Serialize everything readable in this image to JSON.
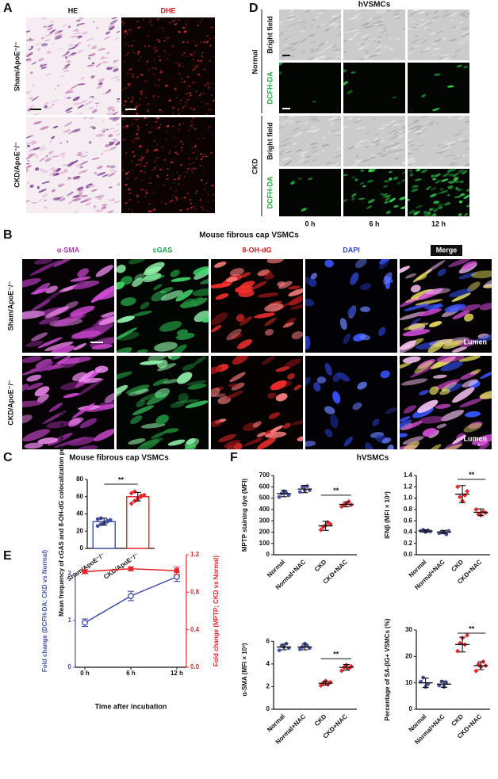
{
  "figure": {
    "panel_a": {
      "letter": "A",
      "columns": [
        "HE",
        "DHE"
      ],
      "rows": [
        "Sham/ApoE⁻/⁻",
        "CKD/ApoE⁻/⁻"
      ]
    },
    "panel_d": {
      "letter": "D",
      "title": "hVSMCs",
      "groups": [
        "Normal",
        "CKD"
      ],
      "channels": [
        "Bright field",
        "DCFH-DA",
        "Bright field",
        "DCFH-DA"
      ],
      "times": [
        "0 h",
        "6 h",
        "12 h"
      ]
    },
    "panel_b": {
      "letter": "B",
      "title": "Mouse fibrous cap VSMCs",
      "columns": [
        "α-SMA",
        "cGAS",
        "8-OH-dG",
        "DAPI",
        "Merge"
      ],
      "rows": [
        "Sham/ApoE⁻/⁻",
        "CKD/ApoE⁻/⁻"
      ],
      "annotations": [
        "Lumen",
        "Lumen"
      ]
    },
    "panel_f": {
      "letter": "F",
      "title": "hVSMCs"
    }
  },
  "chart_data": [
    {
      "type": "bar",
      "letter": "C",
      "title": "Mouse fibrous cap VSMCs",
      "y_label": "Mean frequency of cGAS and 8-OH-dG colocalization per mouse (%)",
      "categories": [
        "Sham/ApoE⁻/⁻",
        "CKD/ApoE⁻/⁻"
      ],
      "values": [
        31,
        60
      ],
      "errors": [
        4,
        5
      ],
      "points": [
        [
          26,
          28,
          30,
          31,
          33,
          34,
          35,
          29,
          32
        ],
        [
          52,
          55,
          58,
          60,
          62,
          64,
          66,
          57,
          61
        ]
      ],
      "colors": [
        "#3f4fa8",
        "#e8262a"
      ],
      "ylim": [
        0,
        80
      ],
      "yticks": [
        0,
        20,
        40,
        60,
        80
      ],
      "annotation": "**"
    },
    {
      "type": "line",
      "letter": "E",
      "x_label": "Time after incubation",
      "categories": [
        "0 h",
        "6 h",
        "12 h"
      ],
      "series": [
        {
          "name": "Fold change (DCFH-DA; CKD vs Normal)",
          "color": "#4a55a8",
          "values": [
            0.95,
            1.52,
            1.93
          ],
          "errors": [
            0.08,
            0.1,
            0.1
          ]
        },
        {
          "name": "Fold change (MPTP; CKD vs Normal)",
          "color": "#e8262a",
          "axis": "y2",
          "values": [
            1.02,
            1.05,
            1.03
          ],
          "errors": [
            0.02,
            0.02,
            0.04
          ]
        }
      ],
      "ylim": [
        0,
        2.4
      ],
      "yticks": [
        0,
        1,
        2
      ],
      "y2lim": [
        0,
        1.2
      ],
      "y2ticks": [
        {
          "value": 0,
          "label": "0.0"
        },
        0.4,
        0.8,
        1.2
      ]
    },
    {
      "type": "dot",
      "y_label": "MPTP staining dye (MFI)",
      "categories": [
        "Normal",
        "Normal+NAC",
        "CKD",
        "CKD+NAC"
      ],
      "values": [
        540,
        580,
        255,
        445
      ],
      "errors": [
        28,
        32,
        40,
        22
      ],
      "points": [
        [
          510,
          540,
          560,
          545,
          525
        ],
        [
          555,
          600,
          570,
          605,
          570
        ],
        [
          220,
          245,
          260,
          285,
          270
        ],
        [
          425,
          440,
          455,
          470,
          440
        ]
      ],
      "colors": [
        "#4a55a8",
        "#4a55a8",
        "#e8262a",
        "#e8262a"
      ],
      "ylim": [
        0,
        700
      ],
      "yticks": [
        0,
        100,
        200,
        300,
        400,
        500,
        600,
        700
      ],
      "annotation": "**"
    },
    {
      "type": "dot",
      "y_label": "IFNβ (MFI × 10³)",
      "categories": [
        "Normal",
        "Normal+NAC",
        "CKD",
        "CKD+NAC"
      ],
      "values": [
        0.42,
        0.4,
        1.07,
        0.75
      ],
      "errors": [
        0.02,
        0.03,
        0.15,
        0.06
      ],
      "points": [
        [
          0.42,
          0.44,
          0.4,
          0.43,
          0.41
        ],
        [
          0.38,
          0.41,
          0.4,
          0.36,
          0.42
        ],
        [
          1.2,
          1.02,
          0.95,
          1.05,
          1.12
        ],
        [
          0.8,
          0.72,
          0.7,
          0.76,
          0.74
        ]
      ],
      "colors": [
        "#4a55a8",
        "#4a55a8",
        "#e8262a",
        "#e8262a"
      ],
      "ylim": [
        0,
        1.4
      ],
      "yticks": [
        {
          "value": 0,
          "label": "0.0"
        },
        0.2,
        0.4,
        0.6,
        0.8,
        {
          "value": 1,
          "label": "1.0"
        },
        1.2,
        1.4
      ],
      "annotation": "**"
    },
    {
      "type": "dot",
      "y_label": "α-SMA (MFI × 10³)",
      "categories": [
        "Normal",
        "Normal+NAC",
        "CKD",
        "CKD+NAC"
      ],
      "values": [
        5.5,
        5.5,
        2.3,
        3.7
      ],
      "errors": [
        0.25,
        0.25,
        0.18,
        0.25
      ],
      "points": [
        [
          5.2,
          5.6,
          5.5,
          5.8,
          5.4
        ],
        [
          5.3,
          5.5,
          5.8,
          5.6,
          5.4
        ],
        [
          2.1,
          2.3,
          2.5,
          2.2,
          2.4
        ],
        [
          3.4,
          3.7,
          3.9,
          3.6,
          3.8
        ]
      ],
      "colors": [
        "#4a55a8",
        "#4a55a8",
        "#e8262a",
        "#e8262a"
      ],
      "ylim": [
        0,
        7
      ],
      "yticks": [
        0,
        2,
        4,
        6
      ],
      "annotation": "**"
    },
    {
      "type": "dot",
      "y_label": "Percentage of SA-βG+ VSMCs (%)",
      "categories": [
        "Normal",
        "Normal+NAC",
        "CKD",
        "CKD+NAC"
      ],
      "values": [
        10,
        9.5,
        24.5,
        16.5
      ],
      "errors": [
        1.8,
        1.2,
        2.8,
        1.5
      ],
      "points": [
        [
          10.5,
          12,
          8.5,
          9.5
        ],
        [
          9,
          10.5,
          8.5,
          10
        ],
        [
          22,
          25,
          27,
          24.5,
          28
        ],
        [
          14.5,
          17,
          16,
          18,
          16.5
        ]
      ],
      "colors": [
        "#4a55a8",
        "#4a55a8",
        "#e8262a",
        "#e8262a"
      ],
      "ylim": [
        0,
        30
      ],
      "yticks": [
        0,
        10,
        20,
        30
      ],
      "annotation": "**"
    }
  ]
}
